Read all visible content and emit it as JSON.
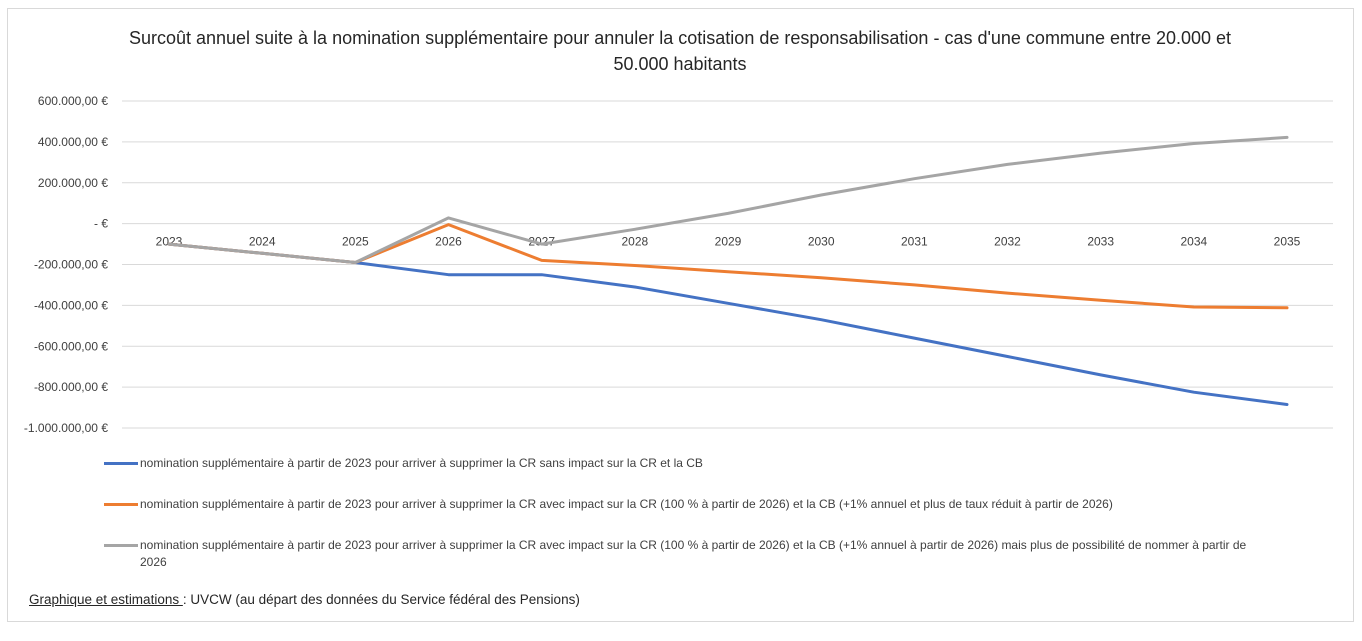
{
  "chart_data": {
    "type": "line",
    "title": "Surcoût annuel suite à la nomination supplémentaire pour annuler la cotisation de responsabilisation - cas d'une commune entre 20.000 et 50.000 habitants",
    "categories": [
      "2023",
      "2024",
      "2025",
      "2026",
      "2027",
      "2028",
      "2029",
      "2030",
      "2031",
      "2032",
      "2033",
      "2034",
      "2035"
    ],
    "ylim": [
      -1000000,
      600000
    ],
    "yticks": [
      600000,
      400000,
      200000,
      0,
      -200000,
      -400000,
      -600000,
      -800000,
      -1000000
    ],
    "ytick_labels": [
      "600.000,00 €",
      "400.000,00 €",
      "200.000,00 €",
      "-   €",
      "-200.000,00 €",
      "-400.000,00 €",
      "-600.000,00 €",
      "-800.000,00 €",
      "-1.000.000,00 €"
    ],
    "grid": true,
    "legend_position": "bottom",
    "series": [
      {
        "name": "nomination supplémentaire à partir de 2023 pour arriver à supprimer la CR sans impact sur la CR et la CB",
        "color": "#4472c4",
        "values": [
          -100000,
          -145000,
          -190000,
          -250000,
          -250000,
          -310000,
          -390000,
          -470000,
          -560000,
          -650000,
          -740000,
          -825000,
          -885000
        ]
      },
      {
        "name": "nomination supplémentaire à partir de 2023 pour arriver à supprimer la CR avec impact sur la CR (100 % à partir de 2026) et la CB (+1% annuel et plus de taux réduit à partir de 2026)",
        "color": "#ed7d31",
        "values": [
          -100000,
          -145000,
          -190000,
          -5000,
          -180000,
          -205000,
          -235000,
          -265000,
          -300000,
          -340000,
          -375000,
          -408000,
          -412000
        ]
      },
      {
        "name": "nomination supplémentaire à partir de 2023 pour arriver à supprimer la CR avec impact sur la CR (100 % à partir de 2026) et la CB (+1% annuel à partir de 2026) mais plus de possibilité de nommer à partir de 2026",
        "color": "#a5a5a5",
        "values": [
          -100000,
          -145000,
          -190000,
          28000,
          -100000,
          -28000,
          50000,
          140000,
          220000,
          290000,
          345000,
          392000,
          422000
        ]
      }
    ]
  },
  "source": {
    "label": "Graphique et estimations ",
    "separator": ":",
    "text": " UVCW (au départ des données du Service fédéral des Pensions)"
  }
}
